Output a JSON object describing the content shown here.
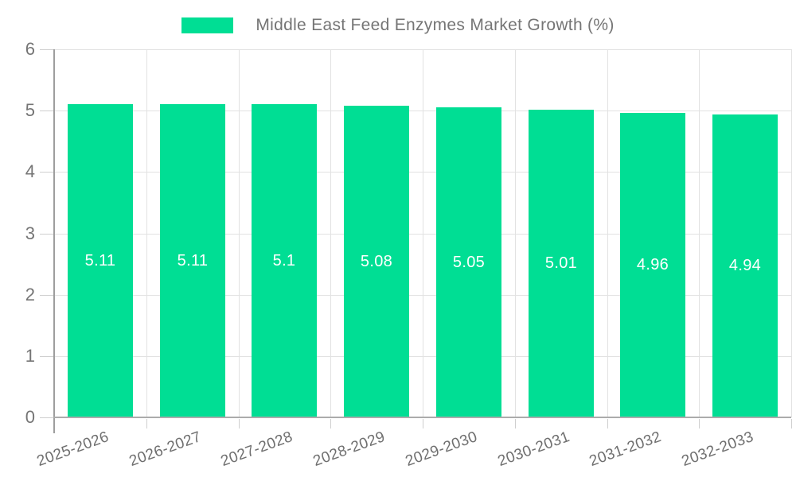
{
  "legend": {
    "label": "Middle East Feed Enzymes Market Growth (%)"
  },
  "chart_data": {
    "type": "bar",
    "title": "Middle East Feed Enzymes Market Growth (%)",
    "categories": [
      "2025-2026",
      "2026-2027",
      "2027-2028",
      "2028-2029",
      "2029-2030",
      "2030-2031",
      "2031-2032",
      "2032-2033"
    ],
    "values": [
      5.11,
      5.11,
      5.1,
      5.08,
      5.05,
      5.01,
      4.96,
      4.94
    ],
    "bar_labels": [
      "5.11",
      "5.11",
      "5.1",
      "5.08",
      "5.05",
      "5.01",
      "4.96",
      "4.94"
    ],
    "xlabel": "",
    "ylabel": "",
    "ylim": [
      0,
      6
    ],
    "yticks": [
      0,
      1,
      2,
      3,
      4,
      5,
      6
    ],
    "grid": true,
    "legend_position": "top",
    "colors": {
      "bar": "#00DE94",
      "bar_label": "#FFFFFF",
      "axis_text": "#757575",
      "x_axis_text": "#6F6F6F",
      "grid_line": "#E2E2E2",
      "tick_line": "#CFCFCF",
      "axis_line": "#9E9E9E",
      "background": "#FFFFFF"
    }
  }
}
